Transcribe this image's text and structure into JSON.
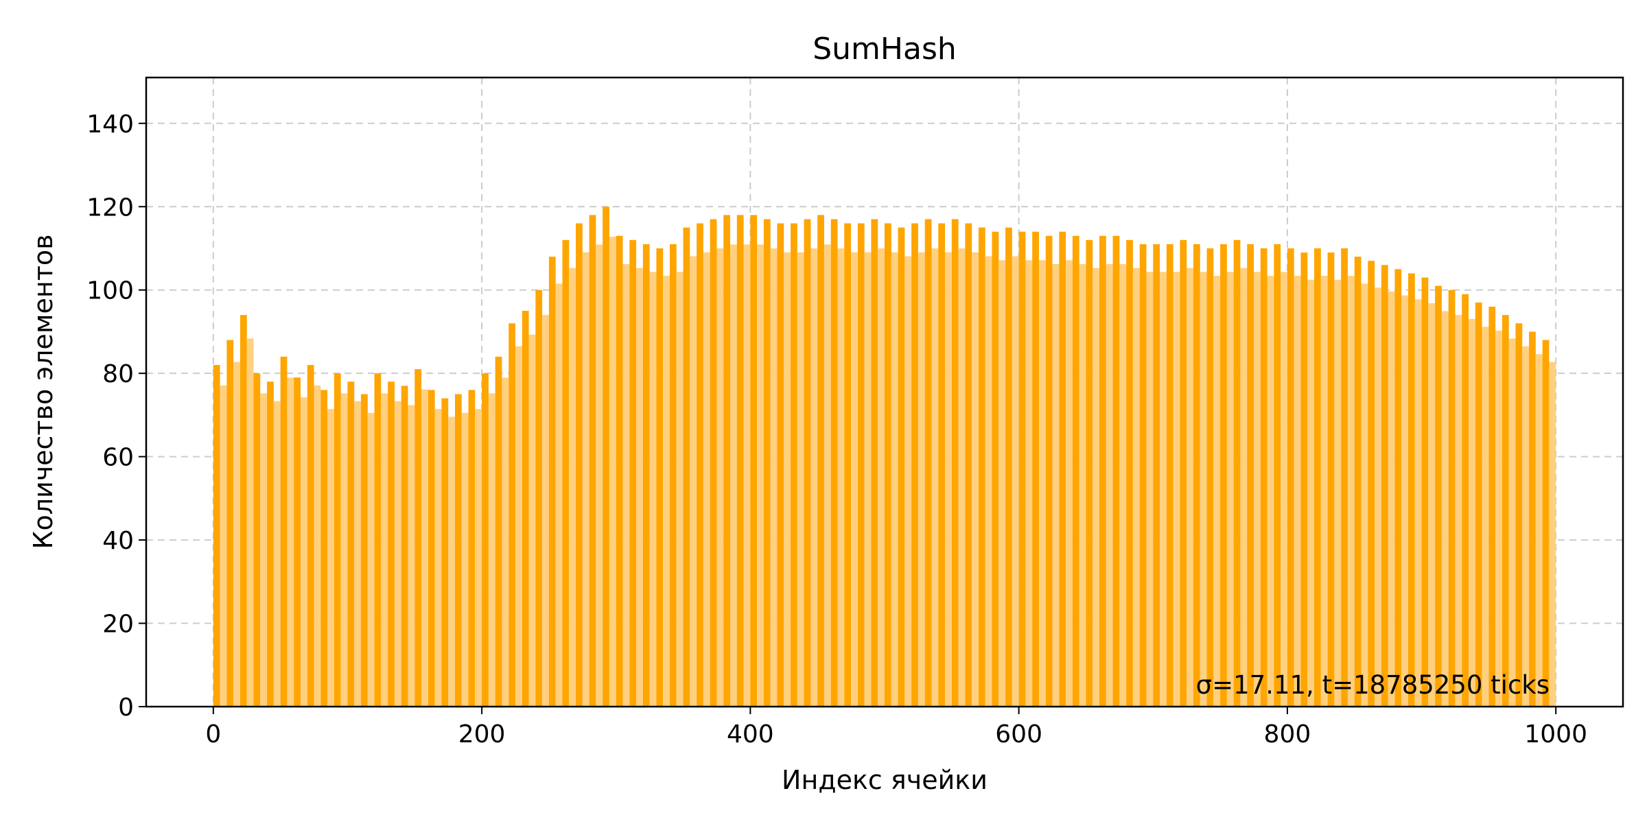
{
  "chart_data": {
    "type": "bar",
    "title": "SumHash",
    "xlabel": "Индекс ячейки",
    "ylabel": "Количество элементов",
    "xlim": [
      -50,
      1050
    ],
    "ylim": [
      0,
      151
    ],
    "x_ticks": [
      0,
      200,
      400,
      600,
      800,
      1000
    ],
    "y_ticks": [
      0,
      20,
      40,
      60,
      80,
      100,
      120,
      140
    ],
    "grid": true,
    "bar_color": "#ffa500",
    "bar_alt_color": "#ffd080",
    "annotation": "σ=17.11, t=18785250 ticks",
    "annotation_position": "bottom-right",
    "bin_count": 1000,
    "bin_width": 10,
    "series": [
      {
        "x": [
          0,
          10,
          20,
          30,
          40,
          50,
          60,
          70,
          80,
          90,
          100,
          110,
          120,
          130,
          140,
          150,
          160,
          170,
          180,
          190,
          200,
          210,
          220,
          230,
          240,
          250,
          260,
          270,
          280,
          290,
          300,
          310,
          320,
          330,
          340,
          350,
          360,
          370,
          380,
          390,
          400,
          410,
          420,
          430,
          440,
          450,
          460,
          470,
          480,
          490,
          500,
          510,
          520,
          530,
          540,
          550,
          560,
          570,
          580,
          590,
          600,
          610,
          620,
          630,
          640,
          650,
          660,
          670,
          680,
          690,
          700,
          710,
          720,
          730,
          740,
          750,
          760,
          770,
          780,
          790,
          800,
          810,
          820,
          830,
          840,
          850,
          860,
          870,
          880,
          890,
          900,
          910,
          920,
          930,
          940,
          950,
          960,
          970,
          980,
          990
        ],
        "values": [
          82,
          88,
          94,
          80,
          78,
          84,
          79,
          82,
          76,
          80,
          78,
          75,
          80,
          78,
          77,
          81,
          76,
          74,
          75,
          76,
          80,
          84,
          92,
          95,
          100,
          108,
          112,
          116,
          118,
          120,
          113,
          112,
          111,
          110,
          111,
          115,
          116,
          117,
          118,
          118,
          118,
          117,
          116,
          116,
          117,
          118,
          117,
          116,
          116,
          117,
          116,
          115,
          116,
          117,
          116,
          117,
          116,
          115,
          114,
          115,
          114,
          114,
          113,
          114,
          113,
          112,
          113,
          113,
          112,
          111,
          111,
          111,
          112,
          111,
          110,
          111,
          112,
          111,
          110,
          111,
          110,
          109,
          110,
          109,
          110,
          108,
          107,
          106,
          105,
          104,
          103,
          101,
          100,
          99,
          97,
          96,
          94,
          92,
          90,
          88
        ]
      }
    ]
  }
}
